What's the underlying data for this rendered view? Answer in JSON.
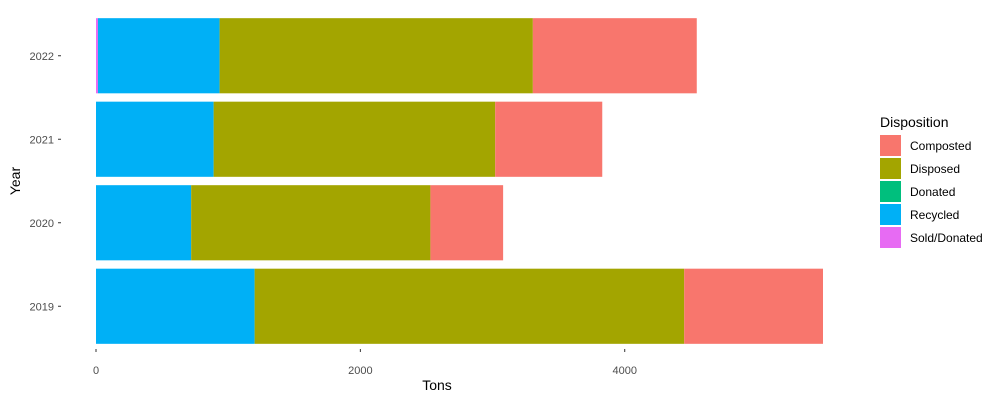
{
  "chart_data": {
    "type": "bar",
    "orientation": "horizontal",
    "stacked": true,
    "title": "",
    "xlabel": "Tons",
    "ylabel": "Year",
    "xlim": [
      0,
      5500
    ],
    "x_ticks": [
      0,
      2000,
      4000
    ],
    "x_tick_labels": [
      "0",
      "2000",
      "4000"
    ],
    "categories": [
      "2019",
      "2020",
      "2021",
      "2022"
    ],
    "series": [
      {
        "name": "Sold/Donated",
        "color": "#E76BF3",
        "values": [
          0,
          0,
          0,
          15
        ]
      },
      {
        "name": "Recycled",
        "color": "#00B0F6",
        "values": [
          1200,
          720,
          890,
          920
        ]
      },
      {
        "name": "Disposed",
        "color": "#A3A500",
        "values": [
          3250,
          1810,
          2130,
          2370
        ]
      },
      {
        "name": "Composted",
        "color": "#F8766D",
        "values": [
          1050,
          550,
          810,
          1240
        ]
      },
      {
        "name": "Donated",
        "color": "#00BF7D",
        "values": [
          0,
          0,
          0,
          0
        ]
      }
    ],
    "grid": false,
    "legend": {
      "title": "Disposition",
      "placement": "right",
      "entries": [
        {
          "label": "Composted",
          "color": "#F8766D"
        },
        {
          "label": "Disposed",
          "color": "#A3A500"
        },
        {
          "label": "Donated",
          "color": "#00BF7D"
        },
        {
          "label": "Recycled",
          "color": "#00B0F6"
        },
        {
          "label": "Sold/Donated",
          "color": "#E76BF3"
        }
      ]
    }
  }
}
